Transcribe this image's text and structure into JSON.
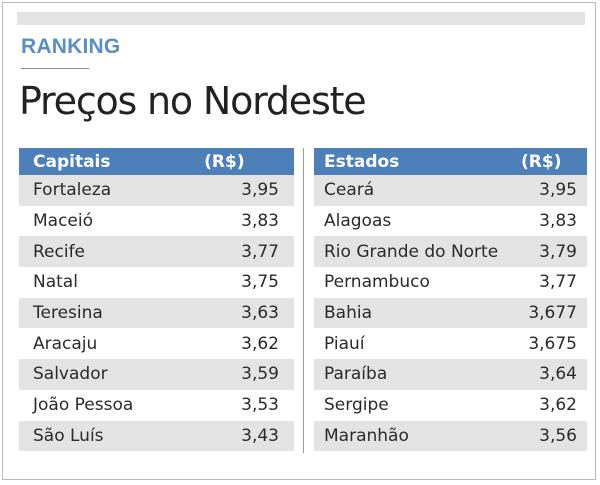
{
  "header": {
    "kicker": "RANKING",
    "title": "Preços no Nordeste"
  },
  "capitais": {
    "col_name": "Capitais",
    "col_value": "(R$)",
    "rows": [
      {
        "name": "Fortaleza",
        "value": "3,95"
      },
      {
        "name": "Maceió",
        "value": "3,83"
      },
      {
        "name": "Recife",
        "value": "3,77"
      },
      {
        "name": "Natal",
        "value": "3,75"
      },
      {
        "name": "Teresina",
        "value": "3,63"
      },
      {
        "name": "Aracaju",
        "value": "3,62"
      },
      {
        "name": "Salvador",
        "value": "3,59"
      },
      {
        "name": "João Pessoa",
        "value": "3,53"
      },
      {
        "name": "São Luís",
        "value": "3,43"
      }
    ]
  },
  "estados": {
    "col_name": "Estados",
    "col_value": "(R$)",
    "rows": [
      {
        "name": "Ceará",
        "value": "3,95"
      },
      {
        "name": "Alagoas",
        "value": "3,83"
      },
      {
        "name": "Rio Grande do Norte",
        "value": "3,79"
      },
      {
        "name": "Pernambuco",
        "value": "3,77"
      },
      {
        "name": "Bahia",
        "value": "3,677"
      },
      {
        "name": "Piauí",
        "value": "3,675"
      },
      {
        "name": "Paraíba",
        "value": "3,64"
      },
      {
        "name": "Sergipe",
        "value": "3,62"
      },
      {
        "name": "Maranhão",
        "value": "3,56"
      }
    ]
  }
}
